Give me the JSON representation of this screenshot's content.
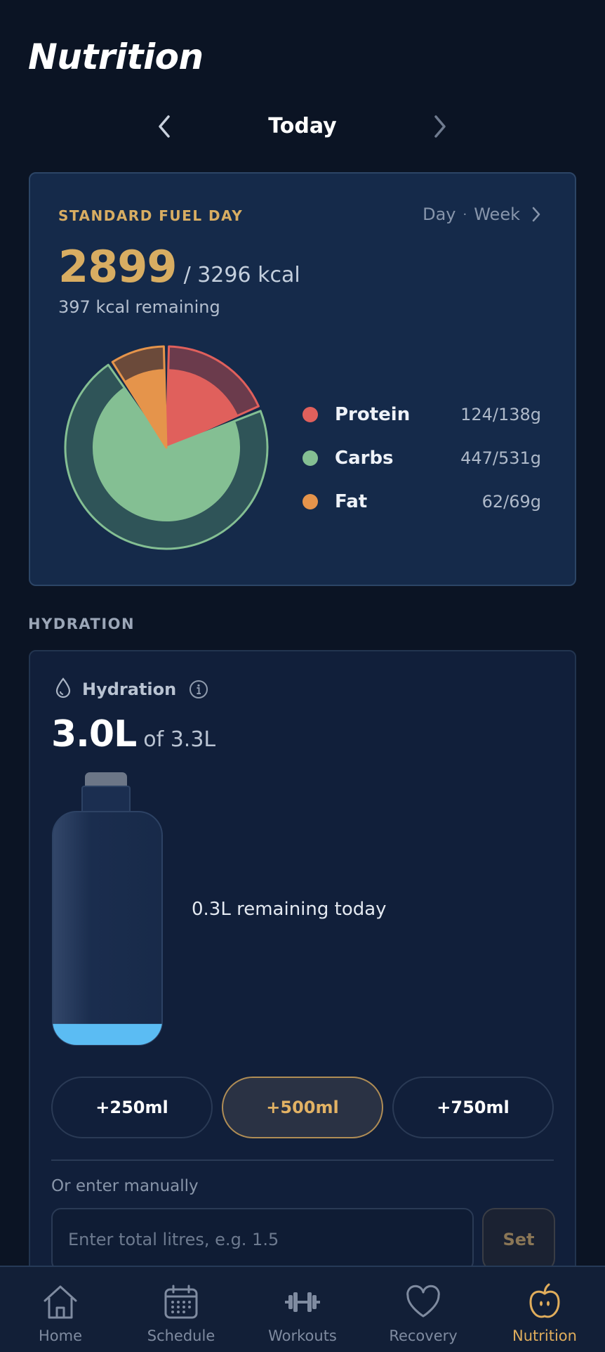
{
  "page": {
    "title": "Nutrition"
  },
  "date_nav": {
    "label": "Today",
    "prev_icon": "chevron-left-icon",
    "next_icon": "chevron-right-icon"
  },
  "fuel_card": {
    "type_label": "STANDARD FUEL DAY",
    "period": {
      "day": "Day",
      "separator": "·",
      "week": "Week"
    },
    "kcal_value": "2899",
    "kcal_goal": "/ 3296 kcal",
    "kcal_remaining": "397 kcal remaining",
    "macros": [
      {
        "name": "Protein",
        "value": "124/138g",
        "consumed": 124,
        "goal": 138,
        "color": "#e0605c"
      },
      {
        "name": "Carbs",
        "value": "447/531g",
        "consumed": 447,
        "goal": 531,
        "color": "#84bf93"
      },
      {
        "name": "Fat",
        "value": "62/69g",
        "consumed": 62,
        "goal": 69,
        "color": "#e5944b"
      }
    ]
  },
  "hydration_section": {
    "label": "HYDRATION"
  },
  "hydration": {
    "title": "Hydration",
    "value": "3.0L",
    "goal": "of 3.3L",
    "remaining": "0.3L remaining today",
    "bottle_fill_fraction": 0.09,
    "quick_add": [
      "+250ml",
      "+500ml",
      "+750ml"
    ],
    "manual_label": "Or enter manually",
    "manual_placeholder": "Enter total litres, e.g. 1.5",
    "set_label": "Set"
  },
  "bottom_nav": {
    "items": [
      {
        "label": "Home",
        "icon": "home-icon"
      },
      {
        "label": "Schedule",
        "icon": "calendar-icon"
      },
      {
        "label": "Workouts",
        "icon": "dumbbell-icon"
      },
      {
        "label": "Recovery",
        "icon": "heart-icon"
      },
      {
        "label": "Nutrition",
        "icon": "apple-icon"
      }
    ],
    "active": "Nutrition"
  },
  "colors": {
    "accent": "#d8ad62",
    "background": "#0b1424",
    "card": "#152a4a",
    "water": "#5bbcf3"
  }
}
